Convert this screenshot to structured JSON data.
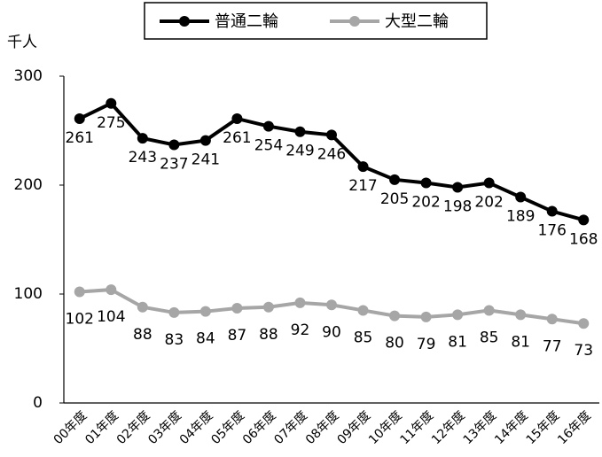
{
  "chart_data": {
    "type": "line",
    "y_label": "千人",
    "categories": [
      "00年度",
      "01年度",
      "02年度",
      "03年度",
      "04年度",
      "05年度",
      "06年度",
      "07年度",
      "08年度",
      "09年度",
      "10年度",
      "11年度",
      "12年度",
      "13年度",
      "14年度",
      "15年度",
      "16年度"
    ],
    "series": [
      {
        "name": "普通二輪",
        "color": "#000000",
        "values": [
          261,
          275,
          243,
          237,
          241,
          261,
          254,
          249,
          246,
          217,
          205,
          202,
          198,
          202,
          189,
          176,
          168
        ]
      },
      {
        "name": "大型二輪",
        "color": "#a6a6a6",
        "values": [
          102,
          104,
          88,
          83,
          84,
          87,
          88,
          92,
          90,
          85,
          80,
          79,
          81,
          85,
          81,
          77,
          73
        ]
      }
    ],
    "ylim": [
      0,
      300
    ],
    "yticks": [
      0,
      100,
      200,
      300
    ],
    "grid": false,
    "legend": "top"
  }
}
